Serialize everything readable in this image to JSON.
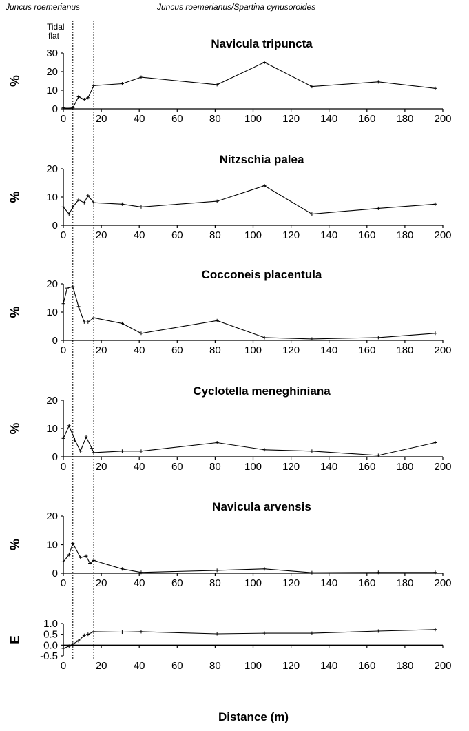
{
  "annotations": {
    "zone1": "Juncus roemerianus",
    "zone2": "Juncus roemerianus/Spartina cynusoroides",
    "tidal_line1": "Tidal",
    "tidal_line2": "flat"
  },
  "shared_x": {
    "label": "Distance (m)",
    "ticks": [
      0,
      20,
      40,
      60,
      80,
      100,
      120,
      140,
      160,
      180,
      200
    ],
    "xlim": [
      0,
      200
    ],
    "zone_boundaries": [
      5,
      16
    ]
  },
  "chart_data": [
    {
      "type": "line",
      "title": "Navicula tripuncta",
      "ylabel": "%",
      "ylim": [
        0,
        30
      ],
      "yticks": [
        0,
        10,
        20,
        30
      ],
      "x": [
        0,
        2,
        5,
        8,
        11,
        13,
        16,
        31,
        41,
        81,
        106,
        131,
        166,
        196
      ],
      "values": [
        0.5,
        0.3,
        0.5,
        6.5,
        5,
        6,
        12.5,
        13.5,
        17,
        13,
        25,
        12,
        14.5,
        11
      ]
    },
    {
      "type": "line",
      "title": "Nitzschia palea",
      "ylabel": "%",
      "ylim": [
        0,
        20
      ],
      "yticks": [
        0,
        10,
        20
      ],
      "x": [
        0,
        3,
        5,
        8,
        11,
        13,
        16,
        31,
        41,
        81,
        106,
        131,
        166,
        196
      ],
      "values": [
        6.5,
        4,
        6.5,
        9,
        8,
        10.5,
        8,
        7.5,
        6.5,
        8.5,
        14,
        4,
        6,
        7.5
      ]
    },
    {
      "type": "line",
      "title": "Cocconeis placentula",
      "ylabel": "%",
      "ylim": [
        0,
        20
      ],
      "yticks": [
        0,
        10,
        20
      ],
      "x": [
        0,
        2,
        5,
        8,
        11,
        13,
        16,
        31,
        41,
        81,
        106,
        131,
        166,
        196
      ],
      "values": [
        13,
        18.5,
        19,
        12,
        6.5,
        6.5,
        8,
        6,
        2.5,
        7,
        1,
        0.5,
        1,
        2.5
      ]
    },
    {
      "type": "line",
      "title": "Cyclotella meneghiniana",
      "ylabel": "%",
      "ylim": [
        0,
        20
      ],
      "yticks": [
        0,
        10,
        20
      ],
      "x": [
        0,
        3,
        6,
        9,
        12,
        15,
        16,
        31,
        41,
        81,
        106,
        131,
        166,
        196
      ],
      "values": [
        6.5,
        11,
        6,
        2,
        7,
        3,
        1.5,
        2,
        2,
        5,
        2.5,
        2,
        0.5,
        5
      ]
    },
    {
      "type": "line",
      "title": "Navicula arvensis",
      "ylabel": "%",
      "ylim": [
        0,
        20
      ],
      "yticks": [
        0,
        10,
        20
      ],
      "x": [
        0,
        3,
        5,
        9,
        12,
        14,
        16,
        31,
        41,
        81,
        106,
        131,
        166,
        196
      ],
      "values": [
        4,
        6.5,
        10.5,
        5.5,
        6,
        3.5,
        4.5,
        1.5,
        0.3,
        1,
        1.5,
        0.2,
        0.3,
        0.3
      ]
    },
    {
      "type": "line",
      "title": "",
      "ylabel": "E",
      "ylim": [
        -0.5,
        1.0
      ],
      "yticks": [
        -0.5,
        0.0,
        0.5,
        1.0
      ],
      "ytick_labels": [
        "-0.5",
        "0.0",
        "0.5",
        "1.0"
      ],
      "x": [
        0,
        3,
        5,
        8,
        11,
        13,
        16,
        31,
        41,
        81,
        106,
        131,
        166,
        196
      ],
      "values": [
        -0.15,
        -0.05,
        0.05,
        0.2,
        0.45,
        0.5,
        0.62,
        0.6,
        0.62,
        0.52,
        0.55,
        0.55,
        0.65,
        0.72
      ]
    }
  ]
}
